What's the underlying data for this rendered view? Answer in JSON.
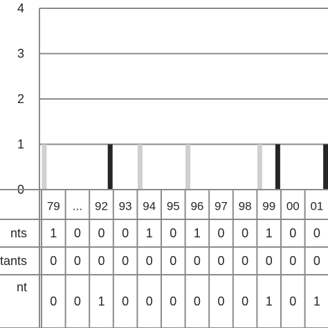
{
  "chart_data": {
    "type": "bar",
    "categories": [
      "79",
      "...",
      "92",
      "93",
      "94",
      "95",
      "96",
      "97",
      "98",
      "99",
      "00",
      "01"
    ],
    "ylim": [
      0,
      4
    ],
    "yticks": [
      "0",
      "1",
      "2",
      "3",
      "4"
    ],
    "grid": true,
    "series": [
      {
        "name": "...nts",
        "color": "#d0d0d0",
        "values": [
          1,
          0,
          0,
          0,
          1,
          0,
          1,
          0,
          0,
          1,
          0,
          0
        ]
      },
      {
        "name": "...tants",
        "color": "#d0d0d0",
        "values": [
          0,
          0,
          0,
          0,
          0,
          0,
          0,
          0,
          0,
          0,
          0,
          0
        ]
      },
      {
        "name": "...nt",
        "color": "#262626",
        "values": [
          0,
          0,
          1,
          0,
          0,
          0,
          0,
          0,
          0,
          1,
          0,
          1
        ]
      }
    ],
    "table_rows": [
      {
        "label": "nts",
        "values": [
          "1",
          "0",
          "0",
          "0",
          "1",
          "0",
          "1",
          "0",
          "0",
          "1",
          "0",
          "0"
        ]
      },
      {
        "label": "tants",
        "values": [
          "0",
          "0",
          "0",
          "0",
          "0",
          "0",
          "0",
          "0",
          "0",
          "0",
          "0",
          "0"
        ]
      },
      {
        "label": "nt",
        "values": [
          "0",
          "0",
          "1",
          "0",
          "0",
          "0",
          "0",
          "0",
          "0",
          "1",
          "0",
          "1"
        ]
      }
    ]
  }
}
